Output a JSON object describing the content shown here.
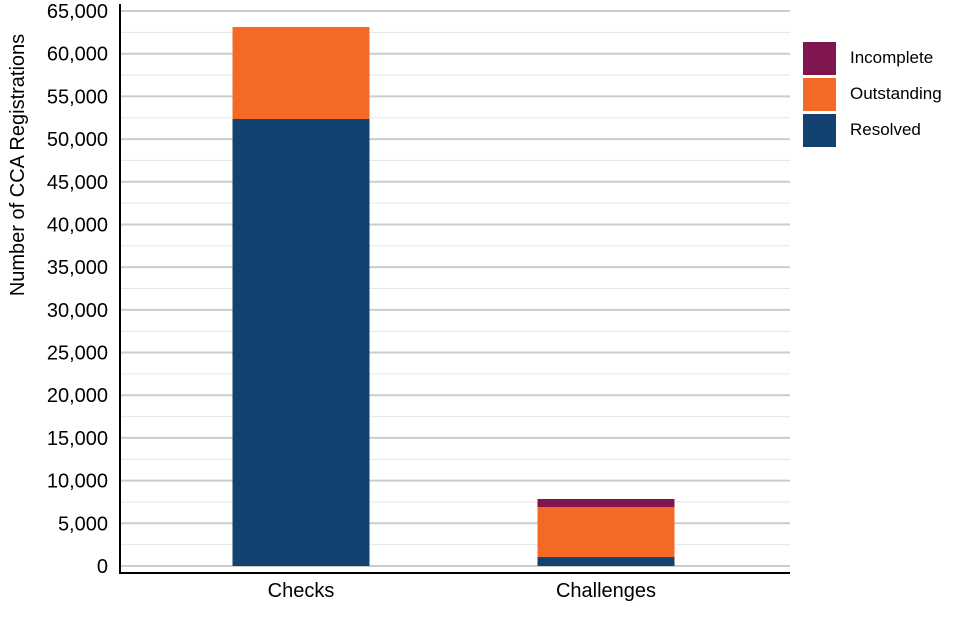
{
  "chart_data": {
    "type": "bar",
    "stacked": true,
    "categories": [
      "Checks",
      "Challenges"
    ],
    "series": [
      {
        "name": "Resolved",
        "color": "#144270",
        "values": [
          52350,
          1050
        ]
      },
      {
        "name": "Outstanding",
        "color": "#F46A25",
        "values": [
          10775,
          5860
        ]
      },
      {
        "name": "Incomplete",
        "color": "#801650",
        "values": [
          0,
          940
        ]
      }
    ],
    "legend_order": [
      "Incomplete",
      "Outstanding",
      "Resolved"
    ],
    "xlabel": "",
    "ylabel": "Number of CCA Registrations",
    "ylim": [
      0,
      65000
    ],
    "yticks": [
      "0",
      "5,000",
      "10,000",
      "15,000",
      "20,000",
      "25,000",
      "30,000",
      "35,000",
      "40,000",
      "45,000",
      "50,000",
      "55,000",
      "60,000",
      "65,000"
    ],
    "grid": true,
    "legend_position": "top-right"
  }
}
